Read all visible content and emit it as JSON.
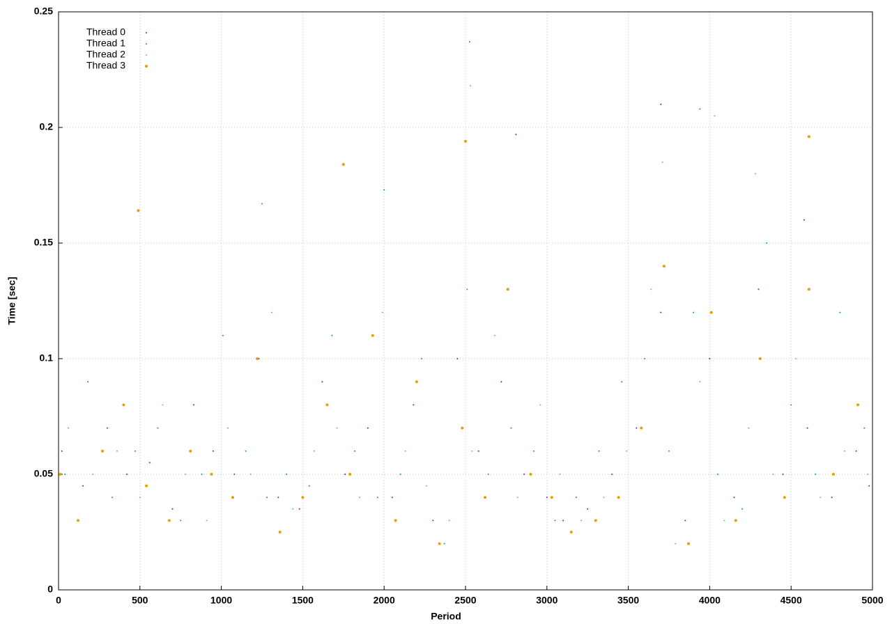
{
  "chart_data": {
    "type": "scatter",
    "xlabel": "Period",
    "ylabel": "Time [sec]",
    "xlim": [
      0,
      5000
    ],
    "xticks": [
      0,
      500,
      1000,
      1500,
      2000,
      2500,
      3000,
      3500,
      4000,
      4500,
      5000
    ],
    "ylim": [
      0,
      0.25
    ],
    "yticks": [
      0,
      0.05,
      0.1,
      0.15,
      0.2,
      0.25
    ],
    "grid": true,
    "legend": "top-left",
    "series": [
      {
        "name": "Thread 0",
        "color": "#9400d3",
        "x": [
          20,
          150,
          300,
          420,
          560,
          700,
          830,
          950,
          1080,
          1230,
          1350,
          1480,
          1620,
          1760,
          1900,
          2050,
          2180,
          2300,
          2450,
          2580,
          2720,
          2860,
          3000,
          3100,
          3250,
          3400,
          3550,
          3700,
          3850,
          4000,
          4150,
          4300,
          4450,
          4600,
          4750,
          4900,
          4980,
          2810,
          3700,
          4580
        ],
        "values": [
          0.06,
          0.045,
          0.07,
          0.05,
          0.055,
          0.035,
          0.08,
          0.06,
          0.05,
          0.1,
          0.04,
          0.035,
          0.09,
          0.05,
          0.07,
          0.04,
          0.08,
          0.03,
          0.1,
          0.06,
          0.09,
          0.05,
          0.04,
          0.03,
          0.035,
          0.05,
          0.07,
          0.12,
          0.03,
          0.1,
          0.04,
          0.13,
          0.05,
          0.07,
          0.04,
          0.06,
          0.045,
          0.197,
          0.21,
          0.16
        ]
      },
      {
        "name": "Thread 1",
        "color": "#009e73",
        "x": [
          40,
          180,
          330,
          470,
          610,
          750,
          880,
          1010,
          1150,
          1280,
          1400,
          1540,
          1680,
          1820,
          1960,
          2100,
          2230,
          2370,
          2510,
          2640,
          2780,
          2920,
          3050,
          3180,
          3320,
          3460,
          3600,
          3750,
          3900,
          4050,
          4200,
          4350,
          4500,
          4650,
          4800,
          4950,
          2525,
          3940,
          1250,
          2000
        ],
        "values": [
          0.05,
          0.09,
          0.04,
          0.06,
          0.07,
          0.03,
          0.05,
          0.11,
          0.06,
          0.04,
          0.05,
          0.045,
          0.11,
          0.06,
          0.04,
          0.05,
          0.1,
          0.02,
          0.13,
          0.05,
          0.07,
          0.06,
          0.03,
          0.04,
          0.06,
          0.09,
          0.1,
          0.06,
          0.12,
          0.05,
          0.035,
          0.15,
          0.08,
          0.05,
          0.12,
          0.07,
          0.237,
          0.208,
          0.167,
          0.173
        ]
      },
      {
        "name": "Thread 2",
        "color": "#56b4e9",
        "x": [
          60,
          210,
          360,
          500,
          640,
          780,
          910,
          1040,
          1180,
          1310,
          1440,
          1570,
          1710,
          1850,
          1990,
          2130,
          2260,
          2400,
          2540,
          2680,
          2820,
          2960,
          3080,
          3210,
          3350,
          3490,
          3640,
          3790,
          3940,
          4090,
          4240,
          4390,
          4530,
          4680,
          4830,
          4970,
          2530,
          4030,
          3710,
          4280
        ],
        "values": [
          0.07,
          0.05,
          0.06,
          0.04,
          0.08,
          0.05,
          0.03,
          0.07,
          0.05,
          0.12,
          0.035,
          0.06,
          0.07,
          0.04,
          0.12,
          0.06,
          0.045,
          0.03,
          0.06,
          0.11,
          0.04,
          0.08,
          0.05,
          0.03,
          0.04,
          0.06,
          0.13,
          0.02,
          0.09,
          0.03,
          0.07,
          0.05,
          0.1,
          0.04,
          0.06,
          0.05,
          0.218,
          0.205,
          0.185,
          0.18
        ]
      },
      {
        "name": "Thread 3",
        "color": "#e69f00",
        "x": [
          10,
          120,
          270,
          400,
          540,
          680,
          810,
          940,
          1070,
          1220,
          1360,
          1500,
          1650,
          1790,
          1930,
          2070,
          2200,
          2340,
          2480,
          2620,
          2760,
          2900,
          3030,
          3150,
          3300,
          3440,
          3580,
          3720,
          3870,
          4010,
          4160,
          4310,
          4460,
          4610,
          4760,
          4910,
          1750,
          2500,
          4610,
          490
        ],
        "values": [
          0.05,
          0.03,
          0.06,
          0.08,
          0.045,
          0.03,
          0.06,
          0.05,
          0.04,
          0.1,
          0.025,
          0.04,
          0.08,
          0.05,
          0.11,
          0.03,
          0.09,
          0.02,
          0.07,
          0.04,
          0.13,
          0.05,
          0.04,
          0.025,
          0.03,
          0.04,
          0.07,
          0.14,
          0.02,
          0.12,
          0.03,
          0.1,
          0.04,
          0.13,
          0.05,
          0.08,
          0.184,
          0.194,
          0.196,
          0.164
        ]
      }
    ]
  }
}
